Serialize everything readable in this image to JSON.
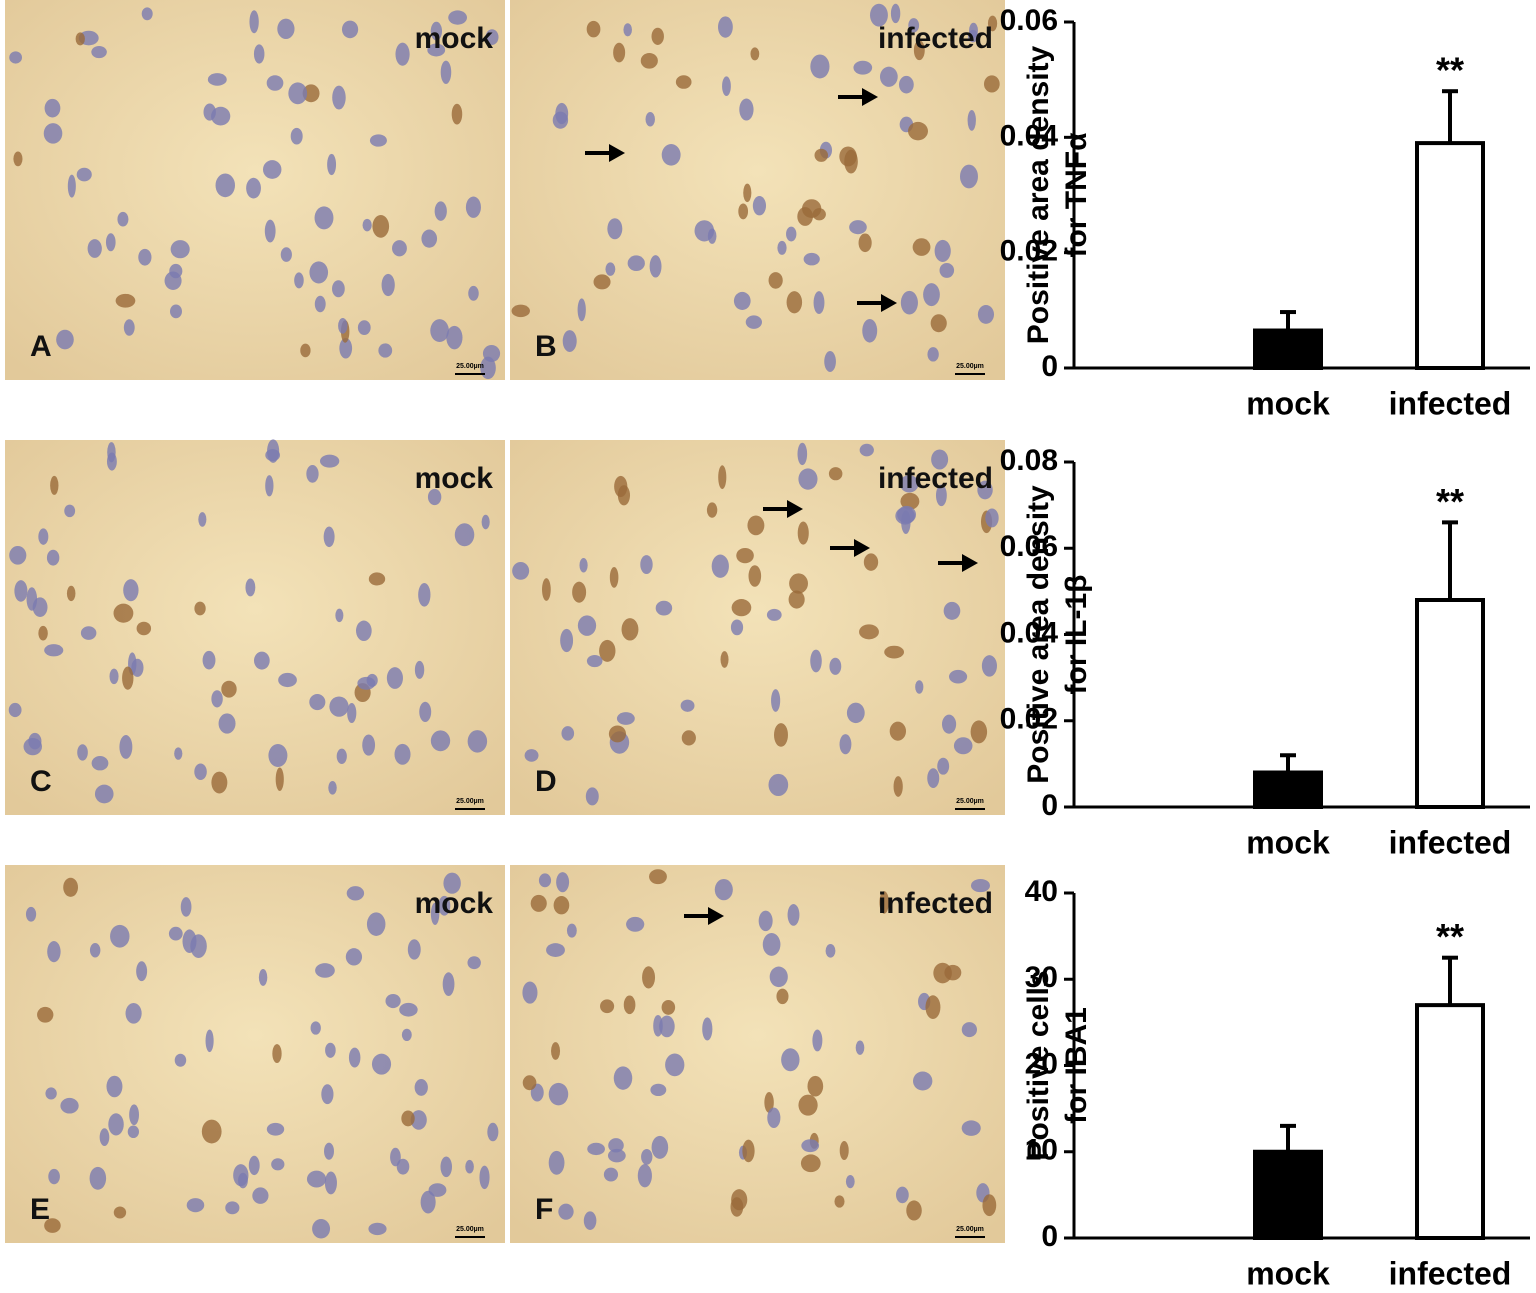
{
  "panels": [
    {
      "letter": "A",
      "label": "mock",
      "scale": "25.00µm"
    },
    {
      "letter": "B",
      "label": "infected",
      "scale": "25.00µm"
    },
    {
      "letter": "C",
      "label": "mock",
      "scale": "25.00µm"
    },
    {
      "letter": "D",
      "label": "infected",
      "scale": "25.00µm"
    },
    {
      "letter": "E",
      "label": "mock",
      "scale": "25.00µm"
    },
    {
      "letter": "F",
      "label": "infected",
      "scale": "25.00µm"
    }
  ],
  "chart_data": [
    {
      "type": "bar",
      "ylabel": [
        "Positive area density",
        "for TNFα"
      ],
      "categories": [
        "mock",
        "infected"
      ],
      "values": [
        0.0065,
        0.039
      ],
      "errors": [
        0.0032,
        0.009
      ],
      "colors": [
        "#000000",
        "#ffffff"
      ],
      "ylim": [
        0,
        0.06
      ],
      "yticks": [
        0,
        0.02,
        0.04,
        0.06
      ],
      "annotations": [
        "**"
      ]
    },
    {
      "type": "bar",
      "ylabel": [
        "Positive area density",
        "for IL-1β"
      ],
      "categories": [
        "mock",
        "infected"
      ],
      "values": [
        0.008,
        0.048
      ],
      "errors": [
        0.004,
        0.018
      ],
      "colors": [
        "#000000",
        "#ffffff"
      ],
      "ylim": [
        0,
        0.08
      ],
      "yticks": [
        0,
        0.02,
        0.04,
        0.06,
        0.08
      ],
      "annotations": [
        "**"
      ]
    },
    {
      "type": "bar",
      "ylabel": [
        "Positive cells",
        "for IBA1"
      ],
      "categories": [
        "mock",
        "infected"
      ],
      "values": [
        10,
        27
      ],
      "errors": [
        3,
        5.5
      ],
      "colors": [
        "#000000",
        "#ffffff"
      ],
      "ylim": [
        0,
        40
      ],
      "yticks": [
        0,
        10,
        20,
        30,
        40
      ],
      "annotations": [
        "**"
      ]
    }
  ]
}
